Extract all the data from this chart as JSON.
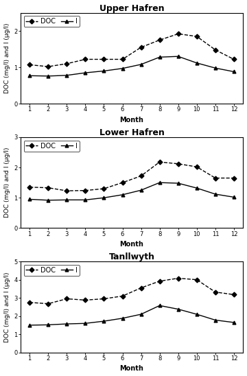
{
  "upper_hafren": {
    "title": "Upper Hafren",
    "DOC": [
      1.07,
      1.02,
      1.1,
      1.22,
      1.22,
      1.22,
      1.55,
      1.75,
      1.92,
      1.85,
      1.48,
      1.22
    ],
    "I": [
      0.77,
      0.76,
      0.78,
      0.85,
      0.9,
      0.97,
      1.08,
      1.28,
      1.3,
      1.12,
      0.98,
      0.88
    ],
    "ylim": [
      0,
      2.5
    ],
    "yticks": [
      0,
      1,
      2
    ]
  },
  "lower_hafren": {
    "title": "Lower Hafren",
    "DOC": [
      1.35,
      1.33,
      1.23,
      1.24,
      1.3,
      1.5,
      1.72,
      2.18,
      2.12,
      2.02,
      1.65,
      1.65
    ],
    "I": [
      0.95,
      0.92,
      0.93,
      0.93,
      1.0,
      1.1,
      1.25,
      1.5,
      1.48,
      1.32,
      1.12,
      1.02
    ],
    "ylim": [
      0,
      3.0
    ],
    "yticks": [
      0,
      1,
      2,
      3
    ]
  },
  "tanllwyth": {
    "title": "Tanllwyth",
    "DOC": [
      2.75,
      2.68,
      2.95,
      2.88,
      2.95,
      3.1,
      3.55,
      3.92,
      4.08,
      4.0,
      3.32,
      3.18
    ],
    "I": [
      1.5,
      1.52,
      1.57,
      1.6,
      1.72,
      1.88,
      2.1,
      2.58,
      2.38,
      2.1,
      1.78,
      1.65
    ],
    "ylim": [
      0,
      5.0
    ],
    "yticks": [
      0,
      1,
      2,
      3,
      4,
      5
    ]
  },
  "months": [
    1,
    2,
    3,
    4,
    5,
    6,
    7,
    8,
    9,
    10,
    11,
    12
  ],
  "xlabel": "Month",
  "ylabel": "DOC (mg/l) and I (μg/l)",
  "doc_linestyle": "--",
  "i_linestyle": "-",
  "doc_marker": "D",
  "i_marker": "^",
  "color": "black",
  "linewidth": 1.0,
  "markersize": 3.5,
  "legend_labels": [
    "DOC",
    "I"
  ],
  "title_fontsize": 9,
  "tick_fontsize": 6,
  "label_fontsize": 7,
  "legend_fontsize": 7
}
